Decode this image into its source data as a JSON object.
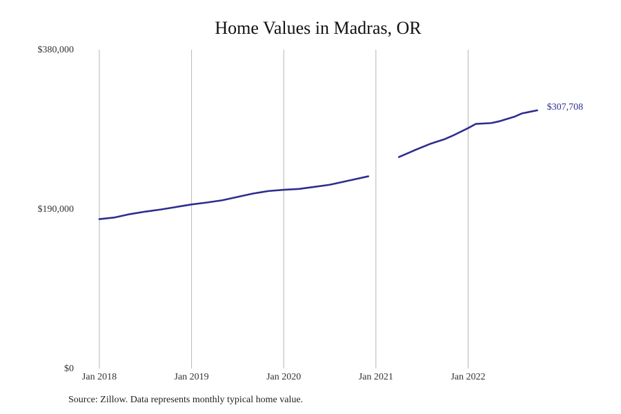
{
  "chart_data": {
    "type": "line",
    "title": "Home Values in Madras, OR",
    "xlabel": "",
    "ylabel": "",
    "x_ticks": [
      "Jan 2018",
      "Jan 2019",
      "Jan 2020",
      "Jan 2021",
      "Jan 2022"
    ],
    "y_ticks": [
      {
        "value": 0,
        "label": "$0"
      },
      {
        "value": 190000,
        "label": "$190,000"
      },
      {
        "value": 380000,
        "label": "$380,000"
      }
    ],
    "xlim": [
      "2018-01",
      "2023-01"
    ],
    "ylim": [
      0,
      380000
    ],
    "grid": "vertical lines at x ticks",
    "line_color": "#2e2d8f",
    "end_label": "$307,708",
    "series": [
      {
        "segments": [
          [
            {
              "x": "2018-01",
              "y": 178000
            },
            {
              "x": "2018-03",
              "y": 180000
            },
            {
              "x": "2018-05",
              "y": 184000
            },
            {
              "x": "2018-07",
              "y": 187000
            },
            {
              "x": "2018-09",
              "y": 189500
            },
            {
              "x": "2018-11",
              "y": 192500
            },
            {
              "x": "2019-01",
              "y": 195500
            },
            {
              "x": "2019-03",
              "y": 197800
            },
            {
              "x": "2019-05",
              "y": 200500
            },
            {
              "x": "2019-07",
              "y": 204500
            },
            {
              "x": "2019-09",
              "y": 208500
            },
            {
              "x": "2019-11",
              "y": 211500
            },
            {
              "x": "2020-01",
              "y": 213000
            },
            {
              "x": "2020-03",
              "y": 214000
            },
            {
              "x": "2020-05",
              "y": 216500
            },
            {
              "x": "2020-07",
              "y": 219000
            },
            {
              "x": "2020-09",
              "y": 223000
            },
            {
              "x": "2020-12",
              "y": 229000
            }
          ],
          [
            {
              "x": "2021-04",
              "y": 252000
            },
            {
              "x": "2021-06",
              "y": 260000
            },
            {
              "x": "2021-08",
              "y": 267500
            },
            {
              "x": "2021-10",
              "y": 273500
            },
            {
              "x": "2021-11",
              "y": 277500
            },
            {
              "x": "2022-01",
              "y": 286500
            },
            {
              "x": "2022-02",
              "y": 291500
            },
            {
              "x": "2022-04",
              "y": 292500
            },
            {
              "x": "2022-05",
              "y": 294500
            },
            {
              "x": "2022-07",
              "y": 300000
            },
            {
              "x": "2022-08",
              "y": 304000
            },
            {
              "x": "2022-10",
              "y": 307708
            }
          ]
        ]
      }
    ]
  },
  "source_note": "Source: Zillow. Data represents monthly typical home value."
}
